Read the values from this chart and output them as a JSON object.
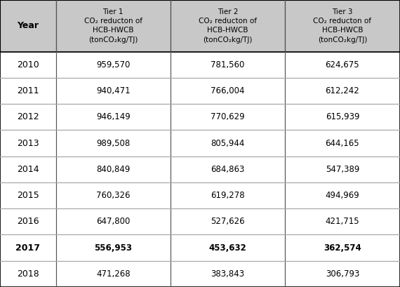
{
  "years": [
    "2010",
    "2011",
    "2012",
    "2013",
    "2014",
    "2015",
    "2016",
    "2017",
    "2018"
  ],
  "tier1": [
    "959,570",
    "940,471",
    "946,149",
    "989,508",
    "840,849",
    "760,326",
    "647,800",
    "556,953",
    "471,268"
  ],
  "tier2": [
    "781,560",
    "766,004",
    "770,629",
    "805,944",
    "684,863",
    "619,278",
    "527,626",
    "453,632",
    "383,843"
  ],
  "tier3": [
    "624,675",
    "612,242",
    "615,939",
    "644,165",
    "547,389",
    "494,969",
    "421,715",
    "362,574",
    "306,793"
  ],
  "bold_row": 7,
  "header_bg": "#c8c8c8",
  "header_line1": [
    "Tier 1",
    "Tier 2",
    "Tier 3"
  ],
  "header_line2": "CO₂ reducton of",
  "header_line3": "HCB-HWCB",
  "header_line4": "(tonCO₂kg/TJ)",
  "col_year_label": "Year",
  "fig_width": 5.7,
  "fig_height": 4.09,
  "dpi": 100
}
